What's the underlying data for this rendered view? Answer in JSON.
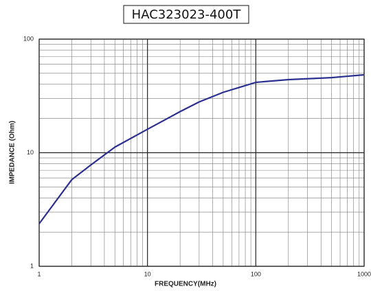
{
  "chart_data": {
    "type": "line",
    "title": "HAC323023-400T",
    "x_label": "FREQUENCY(MHz)",
    "y_label": "IMPEDANCE (Ohm)",
    "x_log": true,
    "y_log": true,
    "grid": true,
    "xlim": [
      1,
      1000
    ],
    "ylim": [
      1,
      100
    ],
    "xticks": [
      1,
      10,
      100,
      1000
    ],
    "yticks": [
      1,
      10,
      100
    ],
    "series": [
      {
        "name": "HAC323023-400T",
        "color": "#2b2f8f",
        "x": [
          1,
          2,
          3,
          5,
          10,
          20,
          30,
          50,
          80,
          100,
          200,
          500,
          1000
        ],
        "values": [
          2.37,
          5.8,
          7.8,
          11.2,
          16.1,
          23,
          28,
          34,
          39,
          41.6,
          44,
          45.8,
          48.5
        ]
      }
    ]
  }
}
